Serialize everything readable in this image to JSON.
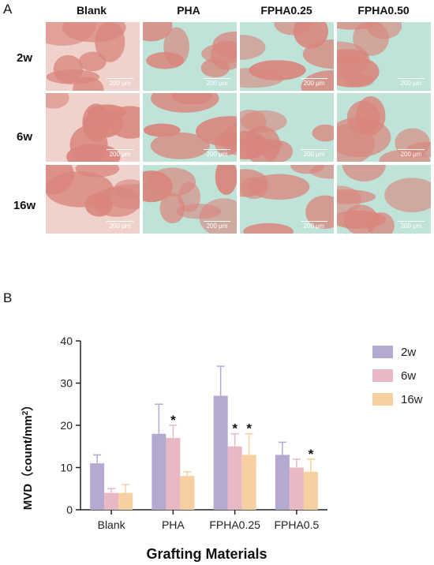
{
  "panel_a": {
    "letter": "A",
    "columns": [
      "Blank",
      "PHA",
      "FPHA0.25",
      "FPHA0.50"
    ],
    "rows": [
      "2w",
      "6w",
      "16w"
    ],
    "scale_bar_label": "200 μm"
  },
  "panel_b": {
    "letter": "B"
  },
  "colors": {
    "2w": "#b5a8d1",
    "6w": "#e8b9c4",
    "16w": "#f7cfa0",
    "tissue": "#d9867d",
    "tissue_light": "#f0d2cc",
    "stroma": "#bfe3d9"
  },
  "chart_data": {
    "type": "bar",
    "categories": [
      "Blank",
      "PHA",
      "FPHA0.25",
      "FPHA0.5"
    ],
    "series": [
      {
        "name": "2w",
        "values": [
          11,
          18,
          27,
          13
        ],
        "errors": [
          2,
          7,
          7,
          3
        ],
        "significant": [
          false,
          false,
          false,
          false
        ]
      },
      {
        "name": "6w",
        "values": [
          4,
          17,
          15,
          10
        ],
        "errors": [
          1,
          3,
          3,
          2
        ],
        "significant": [
          false,
          true,
          true,
          false
        ]
      },
      {
        "name": "16w",
        "values": [
          4,
          8,
          13,
          9
        ],
        "errors": [
          2,
          1,
          5,
          3
        ],
        "significant": [
          false,
          false,
          true,
          true
        ]
      }
    ],
    "ylabel_main": "MVD（count/mm",
    "ylabel_sup": "2",
    "ylabel_end": "）",
    "xlabel": "Grafting Materials",
    "ylim": [
      0,
      40
    ],
    "yticks": [
      "0",
      "10",
      "20",
      "30",
      "40"
    ],
    "star_symbol": "*",
    "legend": [
      "2w",
      "6w",
      "16w"
    ],
    "legend_position": "right"
  }
}
